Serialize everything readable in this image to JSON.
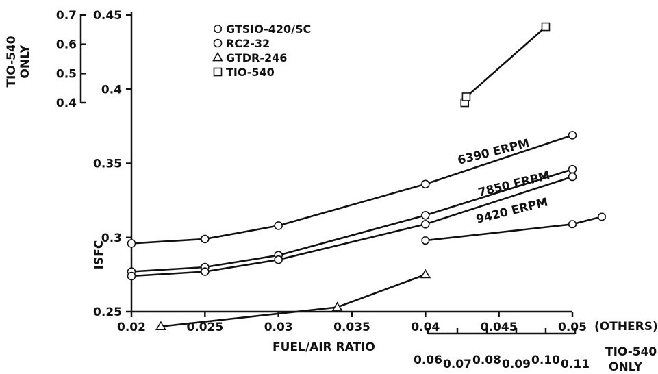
{
  "chart_data": {
    "type": "line",
    "xlabel": "FUEL/AIR RATIO",
    "ylabel": "ISFC",
    "x_ticks": [
      "0.02",
      "0.025",
      "0.03",
      "0.035",
      "0.04",
      "0.045",
      "0.05"
    ],
    "x_ticks_suffix": "(OTHERS)",
    "xlim": [
      0.02,
      0.05
    ],
    "y_ticks": [
      "0.25",
      "0.3",
      "0.35",
      "0.4",
      "0.45"
    ],
    "ylim": [
      0.25,
      0.45
    ],
    "secondary_x": {
      "ticks": [
        "0.06",
        "0.07",
        "0.08",
        "0.09",
        "0.10",
        "0.11"
      ],
      "label_line1": "TIO-540",
      "label_line2": "ONLY",
      "range": [
        0.06,
        0.11
      ]
    },
    "secondary_y": {
      "ticks": [
        "0.7",
        "0.6",
        "0.5",
        "0.4"
      ],
      "label_line1": "TIO-540",
      "label_line2": "ONLY",
      "range": [
        0.4,
        0.7
      ]
    },
    "legend": [
      {
        "name": "GTSIO-420/SC",
        "marker": "octagon"
      },
      {
        "name": "RC2-32",
        "marker": "circle"
      },
      {
        "name": "GTDR-246",
        "marker": "triangle"
      },
      {
        "name": "TIO-540",
        "marker": "square"
      }
    ],
    "series": [
      {
        "name": "RC2-32 6390 ERPM",
        "marker": "circle",
        "label": "6390 ERPM",
        "x": [
          0.02,
          0.025,
          0.03,
          0.04,
          0.05
        ],
        "y": [
          0.296,
          0.299,
          0.308,
          0.336,
          0.369
        ]
      },
      {
        "name": "RC2-32 7850 ERPM",
        "marker": "circle",
        "label": "7850 ERPM",
        "x": [
          0.02,
          0.025,
          0.03,
          0.04,
          0.05
        ],
        "y": [
          0.277,
          0.28,
          0.288,
          0.315,
          0.346
        ]
      },
      {
        "name": "RC2-32 9420 ERPM",
        "marker": "circle",
        "label": "9420 ERPM",
        "x": [
          0.02,
          0.025,
          0.03,
          0.04,
          0.05
        ],
        "y": [
          0.274,
          0.277,
          0.285,
          0.309,
          0.341
        ]
      },
      {
        "name": "GTSIO-420/SC",
        "marker": "octagon",
        "label": "",
        "x": [
          0.04,
          0.05,
          0.052
        ],
        "y": [
          0.298,
          0.309,
          0.314
        ]
      },
      {
        "name": "GTDR-246",
        "marker": "triangle",
        "label": "",
        "x": [
          0.022,
          0.034,
          0.04
        ],
        "y": [
          0.24,
          0.253,
          0.275
        ]
      },
      {
        "name": "TIO-540",
        "marker": "square",
        "label": "",
        "axis": "secondary",
        "x": [
          0.0725,
          0.073,
          0.1
        ],
        "y": [
          0.4,
          0.42,
          0.66
        ]
      }
    ]
  }
}
